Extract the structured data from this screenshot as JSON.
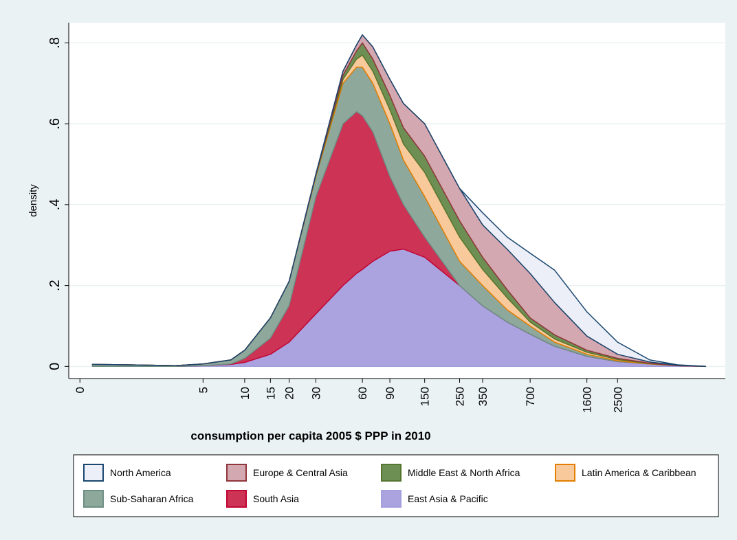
{
  "chart_data": {
    "type": "stacked_area",
    "x_label": "consumption per capita 2005 $ PPP in 2010",
    "y_label": "density",
    "xscale": "log1p",
    "x": [
      0.2,
      1,
      3,
      5,
      8,
      10,
      15,
      20,
      30,
      45,
      55,
      60,
      70,
      90,
      110,
      150,
      250,
      350,
      500,
      700,
      1000,
      1600,
      2500,
      4000,
      6000,
      9000
    ],
    "series": [
      {
        "name": "North America",
        "color": "#eceef8",
        "line_color": "#1a476f",
        "values": [
          0,
          0,
          0,
          0,
          0,
          0,
          0,
          0,
          0,
          0,
          0,
          0,
          0,
          0,
          0,
          0,
          0,
          0.03,
          0.03,
          0.05,
          0.08,
          0.06,
          0.03,
          0.005,
          0.001,
          0
        ]
      },
      {
        "name": "Europe & Central Asia",
        "color": "#d4a8b0",
        "line_color": "#90353b",
        "values": [
          0,
          0,
          0,
          0,
          0,
          0,
          0,
          0,
          0.002,
          0.01,
          0.015,
          0.02,
          0.03,
          0.04,
          0.06,
          0.08,
          0.08,
          0.08,
          0.1,
          0.11,
          0.08,
          0.035,
          0.01,
          0.003,
          0.001,
          0
        ]
      },
      {
        "name": "Middle East & North Africa",
        "color": "#6e8f53",
        "line_color": "#55752f",
        "values": [
          0,
          0,
          0,
          0,
          0,
          0,
          0,
          0,
          0.002,
          0.01,
          0.02,
          0.03,
          0.03,
          0.035,
          0.04,
          0.04,
          0.04,
          0.03,
          0.02,
          0.01,
          0.01,
          0.005,
          0.003,
          0.001,
          0,
          0
        ]
      },
      {
        "name": "Latin America & Caribbean",
        "color": "#f7c99b",
        "line_color": "#e37e00",
        "values": [
          0,
          0,
          0,
          0,
          0,
          0,
          0,
          0,
          0.002,
          0.01,
          0.02,
          0.03,
          0.03,
          0.035,
          0.04,
          0.06,
          0.06,
          0.04,
          0.03,
          0.01,
          0.008,
          0.005,
          0.003,
          0.001,
          0,
          0
        ]
      },
      {
        "name": "Sub-Saharan Africa",
        "color": "#8ea89c",
        "line_color": "#6e8e84",
        "values": [
          0.005,
          0.004,
          0.002,
          0.004,
          0.01,
          0.02,
          0.05,
          0.06,
          0.05,
          0.1,
          0.11,
          0.12,
          0.12,
          0.13,
          0.11,
          0.1,
          0.06,
          0.05,
          0.03,
          0.02,
          0.01,
          0.005,
          0.002,
          0,
          0,
          0
        ]
      },
      {
        "name": "South Asia",
        "color": "#cc3355",
        "line_color": "#c10534",
        "values": [
          0,
          0,
          0,
          0,
          0.001,
          0.01,
          0.04,
          0.09,
          0.29,
          0.4,
          0.4,
          0.38,
          0.32,
          0.185,
          0.11,
          0.05,
          0,
          0,
          0,
          0,
          0,
          0,
          0,
          0,
          0,
          0
        ]
      },
      {
        "name": "East Asia & Pacific",
        "color": "#aaa3e0",
        "line_color": "#a39fdc",
        "values": [
          0,
          0,
          0,
          0.002,
          0.005,
          0.01,
          0.03,
          0.06,
          0.13,
          0.2,
          0.23,
          0.24,
          0.26,
          0.285,
          0.29,
          0.27,
          0.2,
          0.15,
          0.11,
          0.08,
          0.05,
          0.025,
          0.012,
          0.006,
          0.002,
          0
        ]
      }
    ],
    "xlim": [
      -0.15,
      12000
    ],
    "xticks": [
      0,
      5,
      10,
      15,
      20,
      30,
      60,
      90,
      150,
      250,
      350,
      700,
      1600,
      2500
    ],
    "ylim": [
      -0.03,
      0.85
    ],
    "yticks": [
      0,
      {
        "value": 0.2,
        "label": ".2"
      },
      {
        "value": 0.4,
        "label": ".4"
      },
      {
        "value": 0.6,
        "label": ".6"
      },
      {
        "value": 0.8,
        "label": ".8"
      }
    ],
    "grid": true,
    "legend": "bottom"
  }
}
